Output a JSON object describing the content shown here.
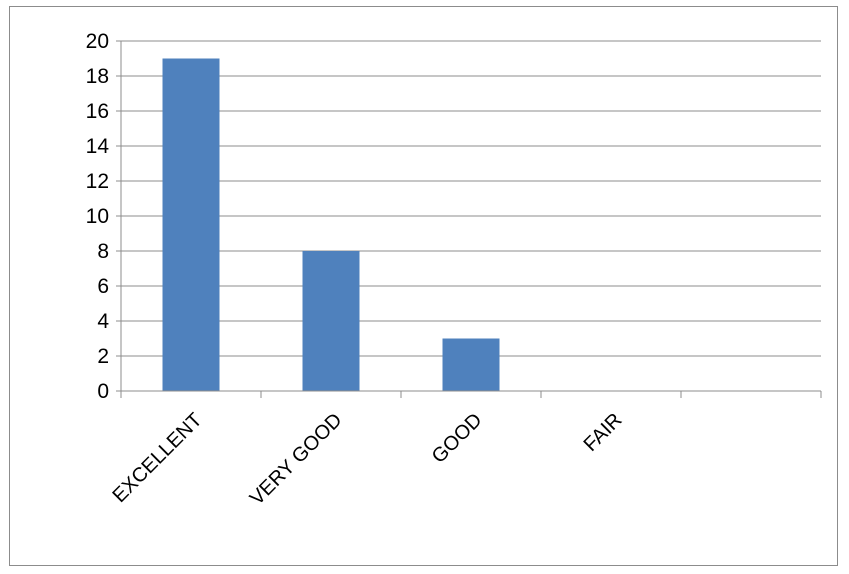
{
  "chart_data": {
    "type": "bar",
    "categories": [
      "EXCELLENT",
      "VERY GOOD",
      "GOOD",
      "FAIR",
      ""
    ],
    "values": [
      19,
      8,
      3,
      0,
      0
    ],
    "ylim": [
      0,
      20
    ],
    "y_ticks": [
      0,
      2,
      4,
      6,
      8,
      10,
      12,
      14,
      16,
      18,
      20
    ],
    "grid": true,
    "legend": "none",
    "bar_color": "#4f81bd"
  }
}
